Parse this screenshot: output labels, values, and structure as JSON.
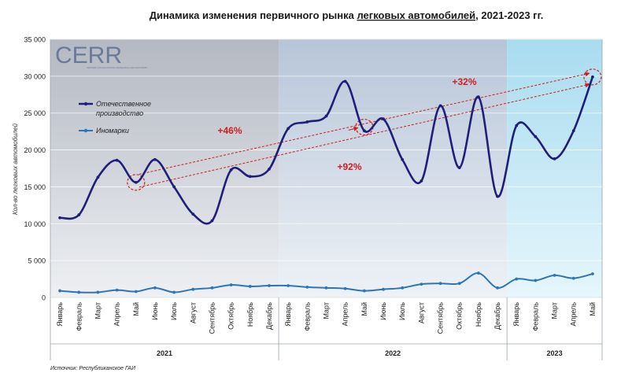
{
  "chart_data": {
    "type": "line",
    "title_parts": [
      "Динамика изменения первичного рынка ",
      "легковых автомобилей",
      ", 2021-2023 гг."
    ],
    "ylabel": "Кол-во легковых автомобилей",
    "ylim": [
      0,
      35000
    ],
    "yticks": [
      "0",
      "5 000",
      "10 000",
      "15 000",
      "20 000",
      "25 000",
      "30 000",
      "35 000"
    ],
    "ytick_values": [
      0,
      5000,
      10000,
      15000,
      20000,
      25000,
      30000,
      35000
    ],
    "categories": [
      "Январь",
      "Февраль",
      "Март",
      "Апрель",
      "Май",
      "Июнь",
      "Июль",
      "Август",
      "Сентябрь",
      "Октябрь",
      "Ноябрь",
      "Декабрь",
      "Январь",
      "Февраль",
      "Март",
      "Апрель",
      "Май",
      "Июнь",
      "Июль",
      "Август",
      "Сентябрь",
      "Октябрь",
      "Ноябрь",
      "Декабрь",
      "Январь",
      "Февраль",
      "Март",
      "Апрель",
      "Май"
    ],
    "years": [
      {
        "label": "2021",
        "start": 0,
        "count": 12
      },
      {
        "label": "2022",
        "start": 12,
        "count": 12
      },
      {
        "label": "2023",
        "start": 24,
        "count": 5
      }
    ],
    "series": [
      {
        "name": "Отечественное производство",
        "color": "#1f1f7a",
        "values": [
          10800,
          11200,
          16300,
          18600,
          15600,
          18700,
          15000,
          11300,
          10400,
          17300,
          16400,
          17400,
          22900,
          23800,
          24600,
          29300,
          22600,
          24200,
          18700,
          15800,
          26000,
          17600,
          27200,
          13700,
          23300,
          21800,
          18800,
          22600,
          29900
        ]
      },
      {
        "name": "Иномарки",
        "color": "#2e75b6",
        "values": [
          900,
          700,
          700,
          1000,
          800,
          1300,
          700,
          1100,
          1300,
          1700,
          1500,
          1600,
          1600,
          1400,
          1300,
          1200,
          900,
          1100,
          1300,
          1800,
          1900,
          1900,
          3300,
          1300,
          2500,
          2300,
          3000,
          2600,
          3200
        ]
      }
    ],
    "annotations": [
      {
        "text": "+46%",
        "color": "#cc1f1f"
      },
      {
        "text": "+92%",
        "color": "#cc1f1f"
      },
      {
        "text": "+32%",
        "color": "#cc1f1f"
      }
    ],
    "logo": {
      "text": "CERR",
      "tagline": "CENTER FOR ECONOMIC RESEARCH AND REFORMS"
    },
    "source": "Источник: Республиканское ГАИ",
    "grid": true,
    "legend_position": "top-left"
  }
}
